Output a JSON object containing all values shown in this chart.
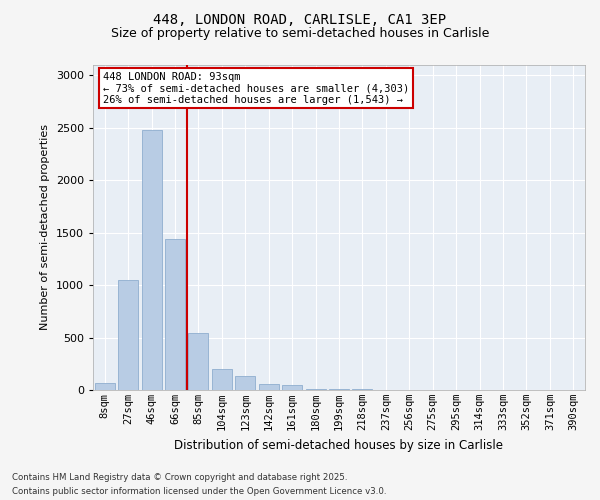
{
  "title1": "448, LONDON ROAD, CARLISLE, CA1 3EP",
  "title2": "Size of property relative to semi-detached houses in Carlisle",
  "xlabel": "Distribution of semi-detached houses by size in Carlisle",
  "ylabel": "Number of semi-detached properties",
  "categories": [
    "8sqm",
    "27sqm",
    "46sqm",
    "66sqm",
    "85sqm",
    "104sqm",
    "123sqm",
    "142sqm",
    "161sqm",
    "180sqm",
    "199sqm",
    "218sqm",
    "237sqm",
    "256sqm",
    "275sqm",
    "295sqm",
    "314sqm",
    "333sqm",
    "352sqm",
    "371sqm",
    "390sqm"
  ],
  "values": [
    65,
    1050,
    2480,
    1440,
    545,
    200,
    130,
    60,
    45,
    10,
    8,
    5,
    3,
    2,
    2,
    1,
    1,
    0,
    0,
    0,
    0
  ],
  "bar_color": "#b8cce4",
  "bar_edge_color": "#8faecf",
  "vline_pos": 3.5,
  "vline_color": "#cc0000",
  "property_label": "448 LONDON ROAD: 93sqm",
  "annotation_line1": "← 73% of semi-detached houses are smaller (4,303)",
  "annotation_line2": "26% of semi-detached houses are larger (1,543) →",
  "box_color": "#cc0000",
  "ylim": [
    0,
    3100
  ],
  "yticks": [
    0,
    500,
    1000,
    1500,
    2000,
    2500,
    3000
  ],
  "footnote1": "Contains HM Land Registry data © Crown copyright and database right 2025.",
  "footnote2": "Contains public sector information licensed under the Open Government Licence v3.0.",
  "bg_color": "#e8eef5",
  "fig_bg_color": "#f5f5f5"
}
